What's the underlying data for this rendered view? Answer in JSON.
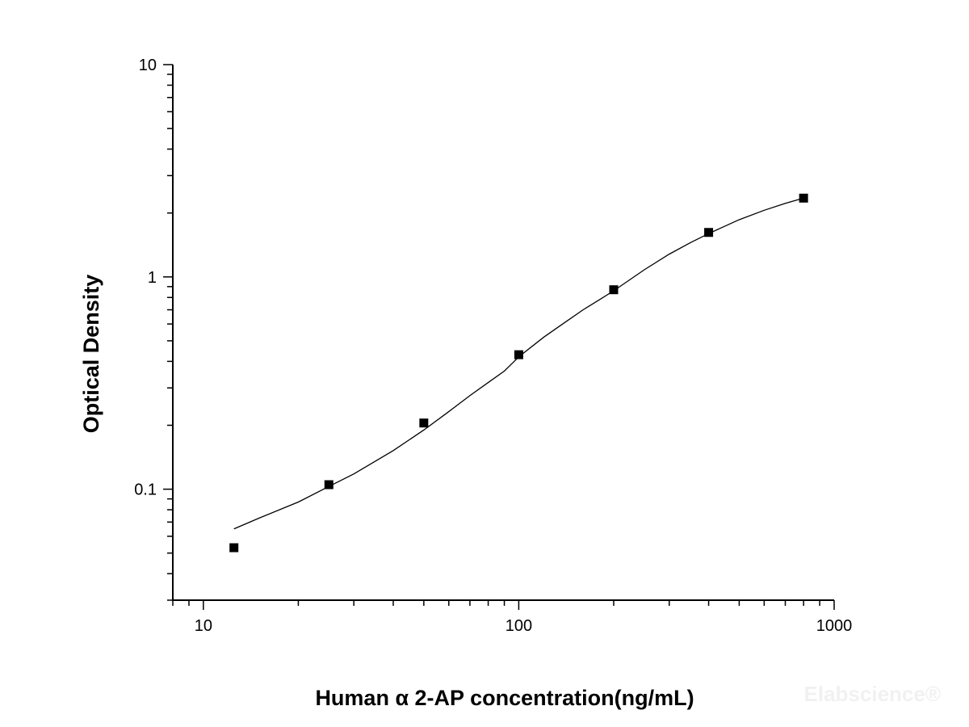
{
  "chart_data": {
    "type": "scatter",
    "title": "",
    "xlabel": "Human α 2-AP concentration(ng/mL)",
    "ylabel": "Optical Density",
    "xscale": "log",
    "yscale": "log",
    "xlim": [
      8,
      1000
    ],
    "ylim": [
      0.03,
      10
    ],
    "x_ticks": [
      "10",
      "100",
      "1000"
    ],
    "y_ticks": [
      "0.1",
      "1",
      "10"
    ],
    "grid": false,
    "legend": "none",
    "marker": "square",
    "color": "#000000",
    "series": [
      {
        "x": [
          12.5,
          25,
          50,
          100,
          200,
          400,
          800
        ],
        "y": [
          0.053,
          0.105,
          0.205,
          0.43,
          0.87,
          1.62,
          2.35
        ]
      }
    ],
    "fit_curve": {
      "x": [
        12.5,
        15,
        20,
        25,
        30,
        40,
        50,
        60,
        70,
        80,
        90,
        100,
        120,
        140,
        160,
        180,
        200,
        250,
        300,
        350,
        400,
        500,
        600,
        700,
        800
      ],
      "y": [
        0.065,
        0.073,
        0.087,
        0.103,
        0.118,
        0.152,
        0.19,
        0.232,
        0.276,
        0.318,
        0.36,
        0.42,
        0.52,
        0.61,
        0.7,
        0.78,
        0.86,
        1.08,
        1.28,
        1.45,
        1.6,
        1.86,
        2.06,
        2.22,
        2.35
      ]
    }
  },
  "watermark": "Elabscience®"
}
